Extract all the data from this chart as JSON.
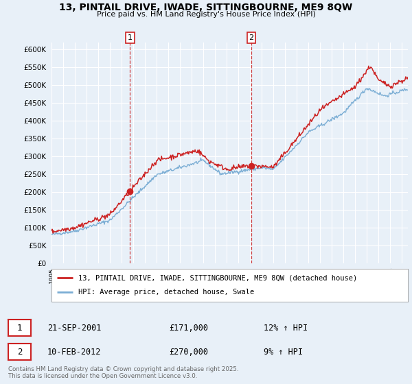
{
  "title": "13, PINTAIL DRIVE, IWADE, SITTINGBOURNE, ME9 8QW",
  "subtitle": "Price paid vs. HM Land Registry's House Price Index (HPI)",
  "ylim": [
    0,
    620000
  ],
  "yticks": [
    0,
    50000,
    100000,
    150000,
    200000,
    250000,
    300000,
    350000,
    400000,
    450000,
    500000,
    550000,
    600000
  ],
  "bg_color": "#e8f0f8",
  "grid_color": "#ffffff",
  "hpi_color": "#7aadd4",
  "price_color": "#cc2222",
  "sale1_date": "21-SEP-2001",
  "sale1_price": "£171,000",
  "sale1_hpi": "12% ↑ HPI",
  "sale2_date": "10-FEB-2012",
  "sale2_price": "£270,000",
  "sale2_hpi": "9% ↑ HPI",
  "legend_label1": "13, PINTAIL DRIVE, IWADE, SITTINGBOURNE, ME9 8QW (detached house)",
  "legend_label2": "HPI: Average price, detached house, Swale",
  "footnote": "Contains HM Land Registry data © Crown copyright and database right 2025.\nThis data is licensed under the Open Government Licence v3.0.",
  "xstart": 1995,
  "xend": 2025
}
